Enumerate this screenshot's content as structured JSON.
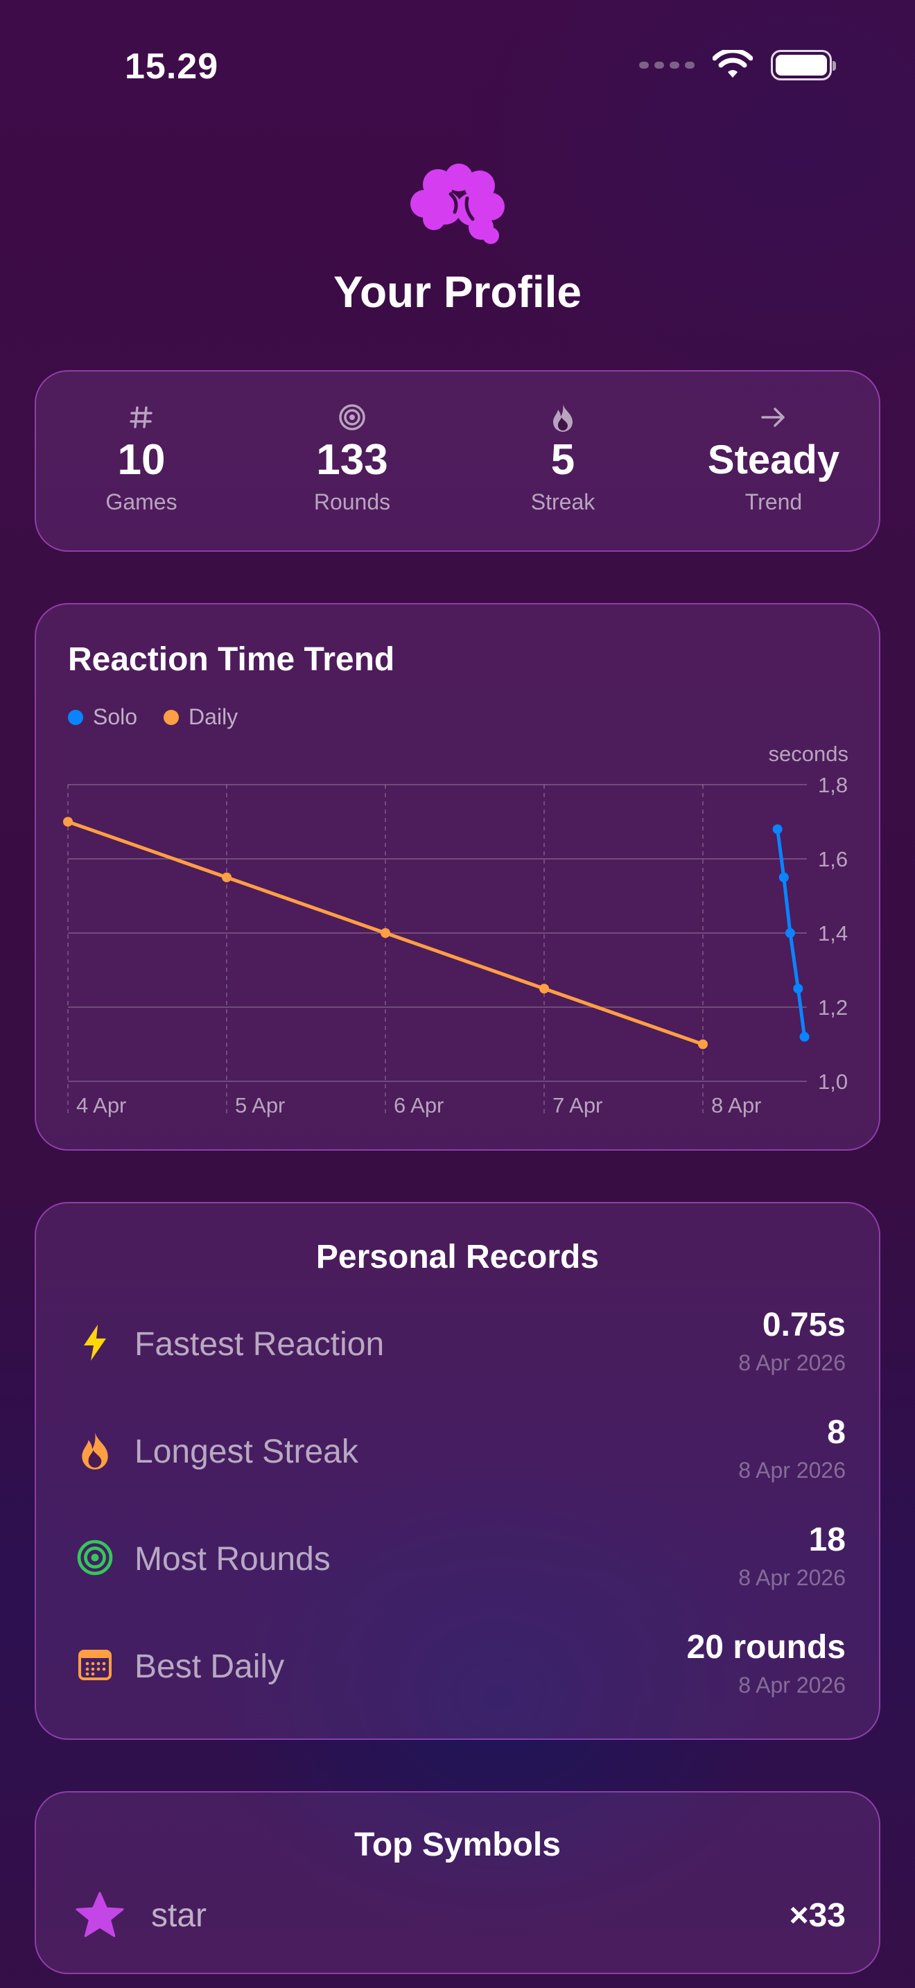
{
  "status_bar": {
    "time": "15.29"
  },
  "header": {
    "title": "Your Profile",
    "icon": "brain-icon"
  },
  "stats": [
    {
      "icon": "hash-icon",
      "value": "10",
      "label": "Games"
    },
    {
      "icon": "target-icon",
      "value": "133",
      "label": "Rounds"
    },
    {
      "icon": "flame-icon",
      "value": "5",
      "label": "Streak"
    },
    {
      "icon": "arrow-right-icon",
      "value": "Steady",
      "label": "Trend"
    }
  ],
  "chart_data": {
    "type": "line",
    "title": "Reaction Time Trend",
    "ylabel": "seconds",
    "ylim": [
      1.0,
      1.8
    ],
    "yticks": [
      "1,0",
      "1,2",
      "1,4",
      "1,6",
      "1,8"
    ],
    "ytick_values": [
      1.0,
      1.2,
      1.4,
      1.6,
      1.8
    ],
    "categories": [
      "4 Apr",
      "5 Apr",
      "6 Apr",
      "7 Apr",
      "8 Apr"
    ],
    "legend_position": "top-left",
    "grid": true,
    "series": [
      {
        "name": "Solo",
        "color": "#0a84ff",
        "points": [
          {
            "x": 4.47,
            "y": 1.68
          },
          {
            "x": 4.51,
            "y": 1.55
          },
          {
            "x": 4.55,
            "y": 1.4
          },
          {
            "x": 4.6,
            "y": 1.25
          },
          {
            "x": 4.64,
            "y": 1.12
          }
        ]
      },
      {
        "name": "Daily",
        "color": "#ff9f43",
        "points": [
          {
            "x": 0,
            "y": 1.7
          },
          {
            "x": 1,
            "y": 1.55
          },
          {
            "x": 2,
            "y": 1.4
          },
          {
            "x": 3,
            "y": 1.25
          },
          {
            "x": 4,
            "y": 1.1
          }
        ]
      }
    ]
  },
  "records": {
    "title": "Personal Records",
    "items": [
      {
        "icon": "bolt-icon",
        "label": "Fastest Reaction",
        "value": "0.75s",
        "date": "8 Apr 2026"
      },
      {
        "icon": "flame-icon",
        "label": "Longest Streak",
        "value": "8",
        "date": "8 Apr 2026"
      },
      {
        "icon": "target-icon",
        "label": "Most Rounds",
        "value": "18",
        "date": "8 Apr 2026"
      },
      {
        "icon": "calendar-icon",
        "label": "Best Daily",
        "value": "20 rounds",
        "date": "8 Apr 2026"
      }
    ]
  },
  "symbols": {
    "title": "Top Symbols",
    "items": [
      {
        "icon": "star-icon",
        "name": "star",
        "count": "×33"
      }
    ]
  },
  "colors": {
    "accent": "#d53ef0",
    "solo": "#0a84ff",
    "daily": "#ff9f43",
    "bolt": "#ffd60a",
    "flame": "#ff9f43",
    "target": "#34c759",
    "calendar": "#ff9f43",
    "star": "#c546e6"
  }
}
